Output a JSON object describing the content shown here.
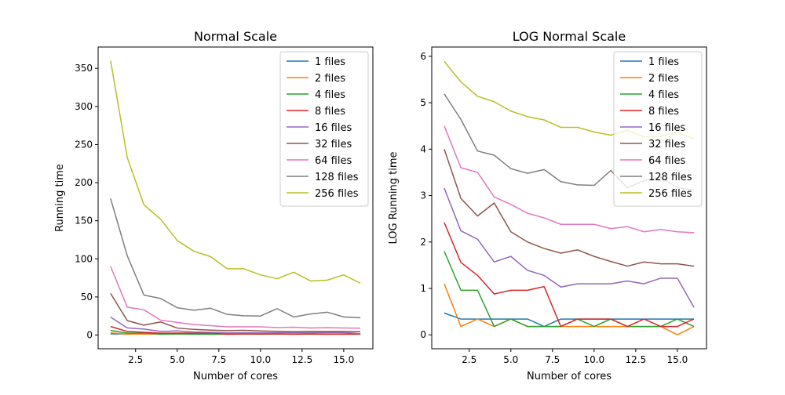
{
  "chart_data": [
    {
      "type": "line",
      "title": "Normal Scale",
      "xlabel": "Number of cores",
      "ylabel": "Running time",
      "xlim": [
        0.25,
        16.75
      ],
      "ylim": [
        -18,
        378
      ],
      "xticks": [
        2.5,
        5.0,
        7.5,
        10.0,
        12.5,
        15.0
      ],
      "xtick_labels": [
        "2.5",
        "5.0",
        "7.5",
        "10.0",
        "12.5",
        "15.0"
      ],
      "yticks": [
        0,
        50,
        100,
        150,
        200,
        250,
        300,
        350
      ],
      "ytick_labels": [
        "0",
        "50",
        "100",
        "150",
        "200",
        "250",
        "300",
        "350"
      ],
      "legend_position": "top-right",
      "grid": false,
      "x": [
        1,
        2,
        3,
        4,
        5,
        6,
        7,
        8,
        9,
        10,
        11,
        12,
        13,
        14,
        15,
        16
      ],
      "series": [
        {
          "name": "1 files",
          "color": "#1f77b4",
          "values": [
            1.6,
            1.4,
            1.4,
            1.4,
            1.4,
            1.4,
            1.2,
            1.4,
            1.4,
            1.4,
            1.4,
            1.4,
            1.4,
            1.4,
            1.4,
            1.4
          ]
        },
        {
          "name": "2 files",
          "color": "#ff7f0e",
          "values": [
            3.0,
            1.2,
            1.4,
            1.2,
            1.4,
            1.2,
            1.2,
            1.2,
            1.2,
            1.2,
            1.2,
            1.2,
            1.2,
            1.2,
            1.0,
            1.2
          ]
        },
        {
          "name": "4 files",
          "color": "#2ca02c",
          "values": [
            6.0,
            2.6,
            2.6,
            1.2,
            1.4,
            1.2,
            1.2,
            1.2,
            1.4,
            1.2,
            1.4,
            1.2,
            1.2,
            1.2,
            1.4,
            1.2
          ]
        },
        {
          "name": "8 files",
          "color": "#d62728",
          "values": [
            11.2,
            4.7,
            3.6,
            2.4,
            2.6,
            2.6,
            2.8,
            1.2,
            1.4,
            1.4,
            1.4,
            1.2,
            1.4,
            1.2,
            1.2,
            1.4
          ]
        },
        {
          "name": "16 files",
          "color": "#9467bd",
          "values": [
            23.5,
            9.4,
            7.8,
            4.8,
            5.4,
            4.0,
            3.6,
            2.8,
            3.0,
            3.0,
            3.0,
            3.2,
            3.0,
            3.4,
            3.4,
            1.8
          ]
        },
        {
          "name": "32 files",
          "color": "#8c564b",
          "values": [
            54.6,
            18.9,
            13.0,
            17.2,
            9.2,
            7.4,
            6.4,
            5.8,
            6.2,
            5.4,
            4.9,
            4.4,
            4.8,
            4.6,
            4.6,
            4.4
          ]
        },
        {
          "name": "64 files",
          "color": "#e377c2",
          "values": [
            90.0,
            36.6,
            33.1,
            19.5,
            16.6,
            13.7,
            12.4,
            10.8,
            10.8,
            10.8,
            9.8,
            10.3,
            9.2,
            9.7,
            9.2,
            9.0
          ]
        },
        {
          "name": "128 files",
          "color": "#7f7f7f",
          "values": [
            179.0,
            104.0,
            52.5,
            48.0,
            35.9,
            32.5,
            35.2,
            27.1,
            25.3,
            25.0,
            34.6,
            23.7,
            27.6,
            30.0,
            23.8,
            22.6
          ]
        },
        {
          "name": "256 files",
          "color": "#bcbd22",
          "values": [
            360.0,
            233.0,
            171.0,
            152.0,
            124.0,
            110.0,
            103.0,
            87.0,
            87.0,
            79.0,
            74.0,
            82.5,
            71.0,
            72.0,
            79.0,
            68.0
          ]
        }
      ]
    },
    {
      "type": "line",
      "title": "LOG Normal Scale",
      "xlabel": "Number of cores",
      "ylabel": "LOG Running time",
      "xlim": [
        0.25,
        16.75
      ],
      "ylim": [
        -0.3,
        6.2
      ],
      "xticks": [
        2.5,
        5.0,
        7.5,
        10.0,
        12.5,
        15.0
      ],
      "xtick_labels": [
        "2.5",
        "5.0",
        "7.5",
        "10.0",
        "12.5",
        "15.0"
      ],
      "yticks": [
        0,
        1,
        2,
        3,
        4,
        5,
        6
      ],
      "ytick_labels": [
        "0",
        "1",
        "2",
        "3",
        "4",
        "5",
        "6"
      ],
      "legend_position": "top-right",
      "grid": false,
      "x": [
        1,
        2,
        3,
        4,
        5,
        6,
        7,
        8,
        9,
        10,
        11,
        12,
        13,
        14,
        15,
        16
      ],
      "series": [
        {
          "name": "1 files",
          "color": "#1f77b4",
          "values": [
            0.47,
            0.34,
            0.34,
            0.34,
            0.34,
            0.34,
            0.18,
            0.34,
            0.34,
            0.34,
            0.34,
            0.34,
            0.34,
            0.34,
            0.34,
            0.34
          ]
        },
        {
          "name": "2 files",
          "color": "#ff7f0e",
          "values": [
            1.1,
            0.18,
            0.34,
            0.18,
            0.34,
            0.18,
            0.18,
            0.18,
            0.18,
            0.18,
            0.18,
            0.18,
            0.18,
            0.18,
            0.0,
            0.18
          ]
        },
        {
          "name": "4 files",
          "color": "#2ca02c",
          "values": [
            1.8,
            0.96,
            0.96,
            0.18,
            0.34,
            0.18,
            0.18,
            0.18,
            0.34,
            0.18,
            0.34,
            0.18,
            0.18,
            0.18,
            0.34,
            0.18
          ]
        },
        {
          "name": "8 files",
          "color": "#d62728",
          "values": [
            2.42,
            1.56,
            1.28,
            0.88,
            0.96,
            0.96,
            1.04,
            0.18,
            0.34,
            0.34,
            0.34,
            0.18,
            0.34,
            0.18,
            0.18,
            0.34
          ]
        },
        {
          "name": "16 files",
          "color": "#9467bd",
          "values": [
            3.16,
            2.24,
            2.06,
            1.57,
            1.69,
            1.39,
            1.28,
            1.03,
            1.1,
            1.1,
            1.1,
            1.16,
            1.1,
            1.22,
            1.22,
            0.59
          ]
        },
        {
          "name": "32 files",
          "color": "#8c564b",
          "values": [
            4.0,
            2.94,
            2.56,
            2.84,
            2.22,
            2.0,
            1.86,
            1.76,
            1.83,
            1.69,
            1.58,
            1.48,
            1.57,
            1.53,
            1.53,
            1.48
          ]
        },
        {
          "name": "64 files",
          "color": "#e377c2",
          "values": [
            4.5,
            3.6,
            3.5,
            2.97,
            2.81,
            2.62,
            2.52,
            2.38,
            2.38,
            2.38,
            2.29,
            2.33,
            2.22,
            2.27,
            2.22,
            2.2
          ]
        },
        {
          "name": "128 files",
          "color": "#7f7f7f",
          "values": [
            5.19,
            4.64,
            3.96,
            3.87,
            3.58,
            3.48,
            3.56,
            3.3,
            3.23,
            3.22,
            3.54,
            3.17,
            3.32,
            3.4,
            3.17,
            3.12
          ]
        },
        {
          "name": "256 files",
          "color": "#bcbd22",
          "values": [
            5.89,
            5.45,
            5.14,
            5.02,
            4.82,
            4.7,
            4.63,
            4.47,
            4.47,
            4.37,
            4.3,
            4.41,
            4.26,
            4.28,
            4.37,
            4.22
          ]
        }
      ]
    }
  ]
}
